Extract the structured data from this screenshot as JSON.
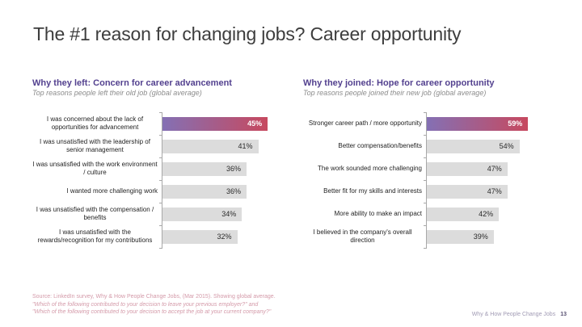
{
  "slide": {
    "title": "The #1 reason for changing jobs? Career opportunity",
    "footer_right_label": "Why & How People Change Jobs",
    "page_number": "13"
  },
  "chart_data": [
    {
      "type": "bar",
      "orientation": "horizontal",
      "title": "Why they left: Concern for career advancement",
      "subtitle": "Top reasons people left their old job (global average)",
      "categories": [
        "I was concerned about the lack of opportunities for advancement",
        "I was unsatisfied with the leadership of senior management",
        "I was unsatisfied with the work environment / culture",
        "I wanted more challenging work",
        "I was unsatisfied with the compensation / benefits",
        "I was unsatisfied with the rewards/recognition for my contributions"
      ],
      "values": [
        45,
        41,
        36,
        36,
        34,
        32
      ],
      "value_suffix": "%",
      "highlight_index": 0,
      "xlim": [
        0,
        55
      ],
      "legend": "none",
      "grid": false
    },
    {
      "type": "bar",
      "orientation": "horizontal",
      "title": "Why they joined: Hope for career opportunity",
      "subtitle": "Top reasons people joined their new job (global average)",
      "categories": [
        "Stronger career path / more opportunity",
        "Better compensation/benefits",
        "The work sounded more challenging",
        "Better fit for my skills and interests",
        "More ability to make an impact",
        "I believed in the company's overall direction"
      ],
      "values": [
        59,
        54,
        47,
        47,
        42,
        39
      ],
      "value_suffix": "%",
      "highlight_index": 0,
      "xlim": [
        0,
        81
      ],
      "legend": "none",
      "grid": false
    }
  ],
  "footer": {
    "source_line": "Source: LinkedIn survey,  Why & How People Change Jobs, (Mar 2015). Showing global average.",
    "question_lines": [
      "\"Which of the following contributed to your decision to leave your previous employer?\" and",
      "\"Which of the following contributed to your decision to accept the job at your current company?\""
    ]
  },
  "colors": {
    "heading_purple": "#53418f",
    "bar_gradient_start": "#8470b4",
    "bar_gradient_end": "#c7495f",
    "bar_gray": "#dcdcdc",
    "title_gray": "#3d3d3d",
    "source_pink": "#d49aa9",
    "footer_lavender": "#a19bb4",
    "page_number_color": "#5b5374"
  }
}
